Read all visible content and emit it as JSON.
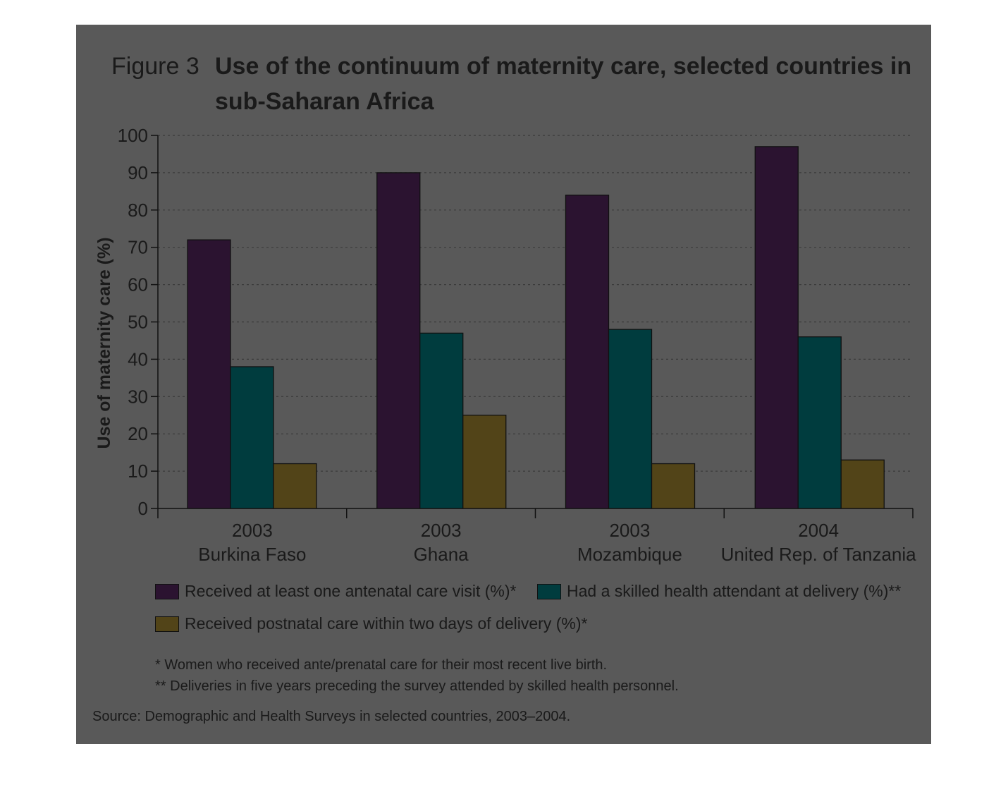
{
  "figure": {
    "number": "Figure 3",
    "title": "Use of the continuum of maternity care, selected countries in sub-Saharan Africa"
  },
  "chart_data": {
    "type": "bar",
    "categories": [
      {
        "year": "2003",
        "country": "Burkina Faso"
      },
      {
        "year": "2003",
        "country": "Ghana"
      },
      {
        "year": "2003",
        "country": "Mozambique"
      },
      {
        "year": "2004",
        "country": "United Rep. of Tanzania"
      }
    ],
    "series": [
      {
        "name": "Received at least one antenatal care visit (%)*",
        "values": [
          72,
          90,
          84,
          97
        ],
        "color": "#2b1330"
      },
      {
        "name": "Had a skilled health attendant at delivery (%)**",
        "values": [
          38,
          47,
          48,
          46
        ],
        "color": "#003c3e"
      },
      {
        "name": "Received postnatal care within two days of delivery (%)*",
        "values": [
          12,
          25,
          12,
          13
        ],
        "color": "#524418"
      }
    ],
    "ylabel": "Use of maternity care (%)",
    "ylim": [
      0,
      100
    ],
    "yticks": [
      0,
      10,
      20,
      30,
      40,
      50,
      60,
      70,
      80,
      90,
      100
    ],
    "grid": true,
    "legend_position": "bottom"
  },
  "notes": [
    "* Women who received ante/prenatal care for their most recent live birth.",
    "** Deliveries in five years preceding the survey attended by skilled health personnel."
  ],
  "source": "Source: Demographic and Health Surveys in selected countries, 2003–2004."
}
